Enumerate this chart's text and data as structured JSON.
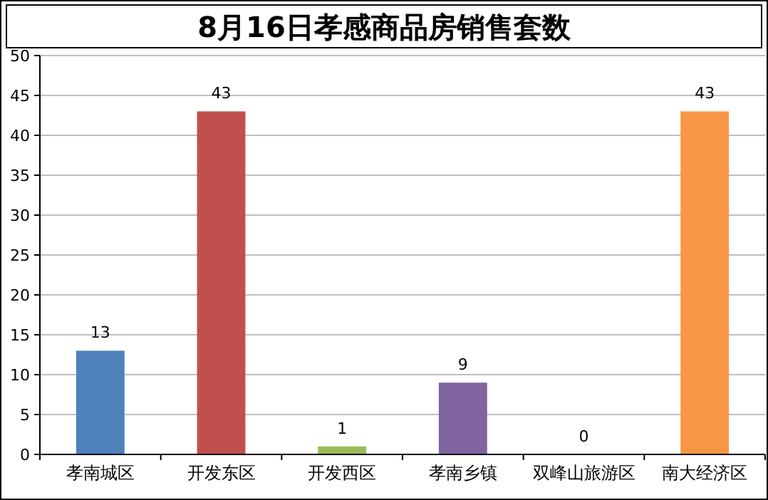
{
  "chart_data": {
    "type": "bar",
    "title": "8月16日孝感商品房销售套数",
    "categories": [
      "孝南城区",
      "开发东区",
      "开发西区",
      "孝南乡镇",
      "双峰山旅游区",
      "南大经济区"
    ],
    "values": [
      13,
      43,
      1,
      9,
      0,
      43
    ],
    "colors": [
      "#4f81bd",
      "#c0504d",
      "#9bbb59",
      "#8064a2",
      "#4bacc6",
      "#f79646"
    ],
    "ylim": [
      0,
      50
    ],
    "yticks": [
      0,
      5,
      10,
      15,
      20,
      25,
      30,
      35,
      40,
      45,
      50
    ],
    "grid": "y",
    "data_labels": true
  }
}
